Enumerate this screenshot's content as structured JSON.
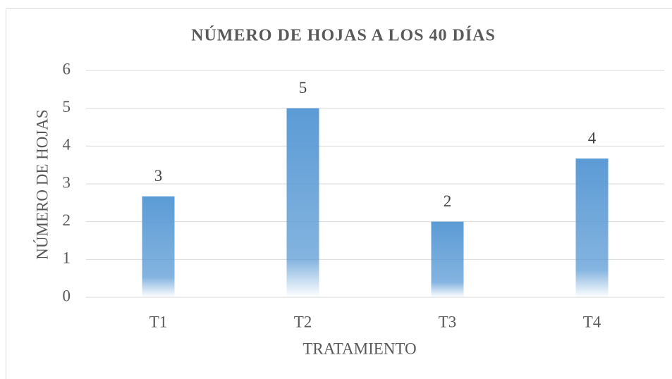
{
  "chart_data": {
    "type": "bar",
    "title": "NÚMERO DE HOJAS A LOS 40 DÍAS",
    "x_label": "TRATAMIENTO",
    "y_label": "NÚMERO DE HOJAS",
    "categories": [
      "T1",
      "T2",
      "T3",
      "T4"
    ],
    "values": [
      2.67,
      5,
      2,
      3.67
    ],
    "value_labels": [
      "3",
      "5",
      "2",
      "4"
    ],
    "color": "#5b9bd5",
    "ylim": [
      0,
      6
    ],
    "yticks": [
      0,
      1,
      2,
      3,
      4,
      5,
      6
    ],
    "grid": true
  }
}
